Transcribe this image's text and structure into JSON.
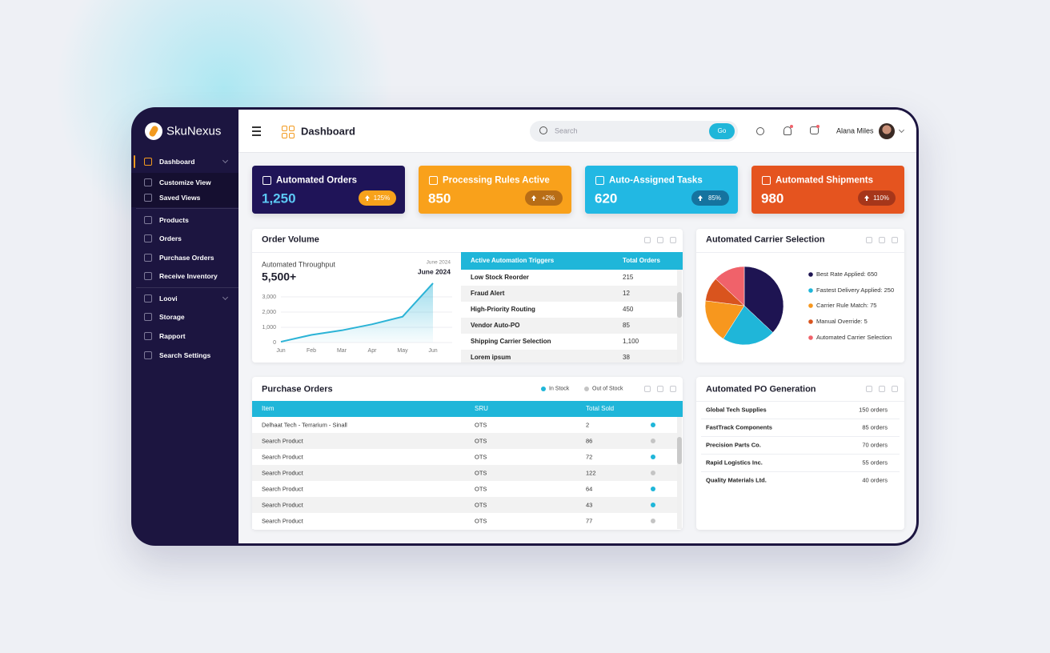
{
  "brand": "SkuNexus",
  "sidebar": {
    "items": [
      "Dashboard",
      "Customize View",
      "Saved Views",
      "Products",
      "Orders",
      "Purchase Orders",
      "Receive Inventory",
      "Loovi",
      "Storage",
      "Rapport",
      "Search Settings"
    ]
  },
  "header": {
    "title": "Dashboard",
    "search_placeholder": "Search",
    "search_button": "Go",
    "user": "Alana Miles"
  },
  "kpis": [
    {
      "label": "Automated Orders",
      "value": "1,250",
      "change": "125%",
      "color": "#1f1458",
      "value_color": "#5cc9f5",
      "badge_color": "#f7a21b"
    },
    {
      "label": "Processing Rules Active",
      "value": "850",
      "change": "+2%",
      "color": "#f9a11b",
      "value_color": "#ffffff",
      "badge_color": "#b86d16"
    },
    {
      "label": "Auto-Assigned Tasks",
      "value": "620",
      "change": "85%",
      "color": "#22b8e3",
      "value_color": "#ffffff",
      "badge_color": "#15739f"
    },
    {
      "label": "Automated Shipments",
      "value": "980",
      "change": "110%",
      "color": "#e5541f",
      "value_color": "#ffffff",
      "badge_color": "#a6361a"
    }
  ],
  "triggers_table": {
    "columns": [
      "Active Automation Triggers",
      "Total Orders"
    ],
    "rows": [
      [
        "Low Stock Reorder",
        "215"
      ],
      [
        "Fraud Alert",
        "12"
      ],
      [
        "High-Priority Routing",
        "450"
      ],
      [
        "Vendor Auto-PO",
        "85"
      ],
      [
        "Shipping Carrier Selection",
        "1,100"
      ],
      [
        "Lorem ipsum",
        "38"
      ]
    ]
  },
  "purchase_orders": {
    "title": "Purchase Orders",
    "legend": [
      {
        "name": "In Stock",
        "color": "#1fb6d9"
      },
      {
        "name": "Out of Stock",
        "color": "#c4c4c4"
      }
    ],
    "columns": [
      "Item",
      "SRU",
      "Total Sold"
    ],
    "rows": [
      {
        "cells": [
          "Delhaat Tech - Terrarium - Sinall",
          "OTS",
          "2"
        ],
        "dot_color": "#1fb6d9"
      },
      {
        "cells": [
          "Search Product",
          "OTS",
          "86"
        ],
        "dot_color": "#c4c4c4"
      },
      {
        "cells": [
          "Search Product",
          "OTS",
          "72"
        ],
        "dot_color": "#1fb6d9"
      },
      {
        "cells": [
          "Search Product",
          "OTS",
          "122"
        ],
        "dot_color": "#c4c4c4"
      },
      {
        "cells": [
          "Search Product",
          "OTS",
          "64"
        ],
        "dot_color": "#1fb6d9"
      },
      {
        "cells": [
          "Search Product",
          "OTS",
          "43"
        ],
        "dot_color": "#1fb6d9"
      },
      {
        "cells": [
          "Search Product",
          "OTS",
          "77"
        ],
        "dot_color": "#c4c4c4"
      }
    ]
  },
  "po_generation": {
    "title": "Automated PO Generation",
    "rows": [
      [
        "Global Tech Supplies",
        "150 orders"
      ],
      [
        "FastTrack Components",
        "85 orders"
      ],
      [
        "Precision Parts Co.",
        "70 orders"
      ],
      [
        "Rapid Logistics Inc.",
        "55 orders"
      ],
      [
        "Quality Materials Ltd.",
        "40 orders"
      ]
    ]
  },
  "chart_data": [
    {
      "type": "line",
      "title": "Order Volume",
      "subtitle": "Automated Throughput",
      "headline": "5,500+",
      "period_note": "June 2024",
      "period": "June 2024",
      "categories": [
        "Jun",
        "Feb",
        "Mar",
        "Apr",
        "May",
        "Jun"
      ],
      "values": [
        50,
        500,
        800,
        1200,
        1700,
        3900
      ],
      "color": "#2bb3d6",
      "ylim": [
        0,
        4000
      ],
      "yticks": [
        0,
        {
          "value": 1000,
          "label": "1,000"
        },
        {
          "value": 2000,
          "label": "2,000"
        },
        {
          "value": 3000,
          "label": "3,000"
        }
      ],
      "grid": true
    },
    {
      "type": "pie",
      "title": "Automated Carrier Selection",
      "categories": [
        "Best Rate Applied: 650",
        "Fastest Delivery Applied: 250",
        "Carrier Rule Match: 75",
        "Manual Override: 5",
        "Automated Carrier Selection"
      ],
      "values": [
        37,
        22,
        18,
        10,
        13
      ],
      "colors": [
        "#1e1452",
        "#1fb6d9",
        "#f7971e",
        "#d9541e",
        "#f0626a"
      ]
    }
  ]
}
